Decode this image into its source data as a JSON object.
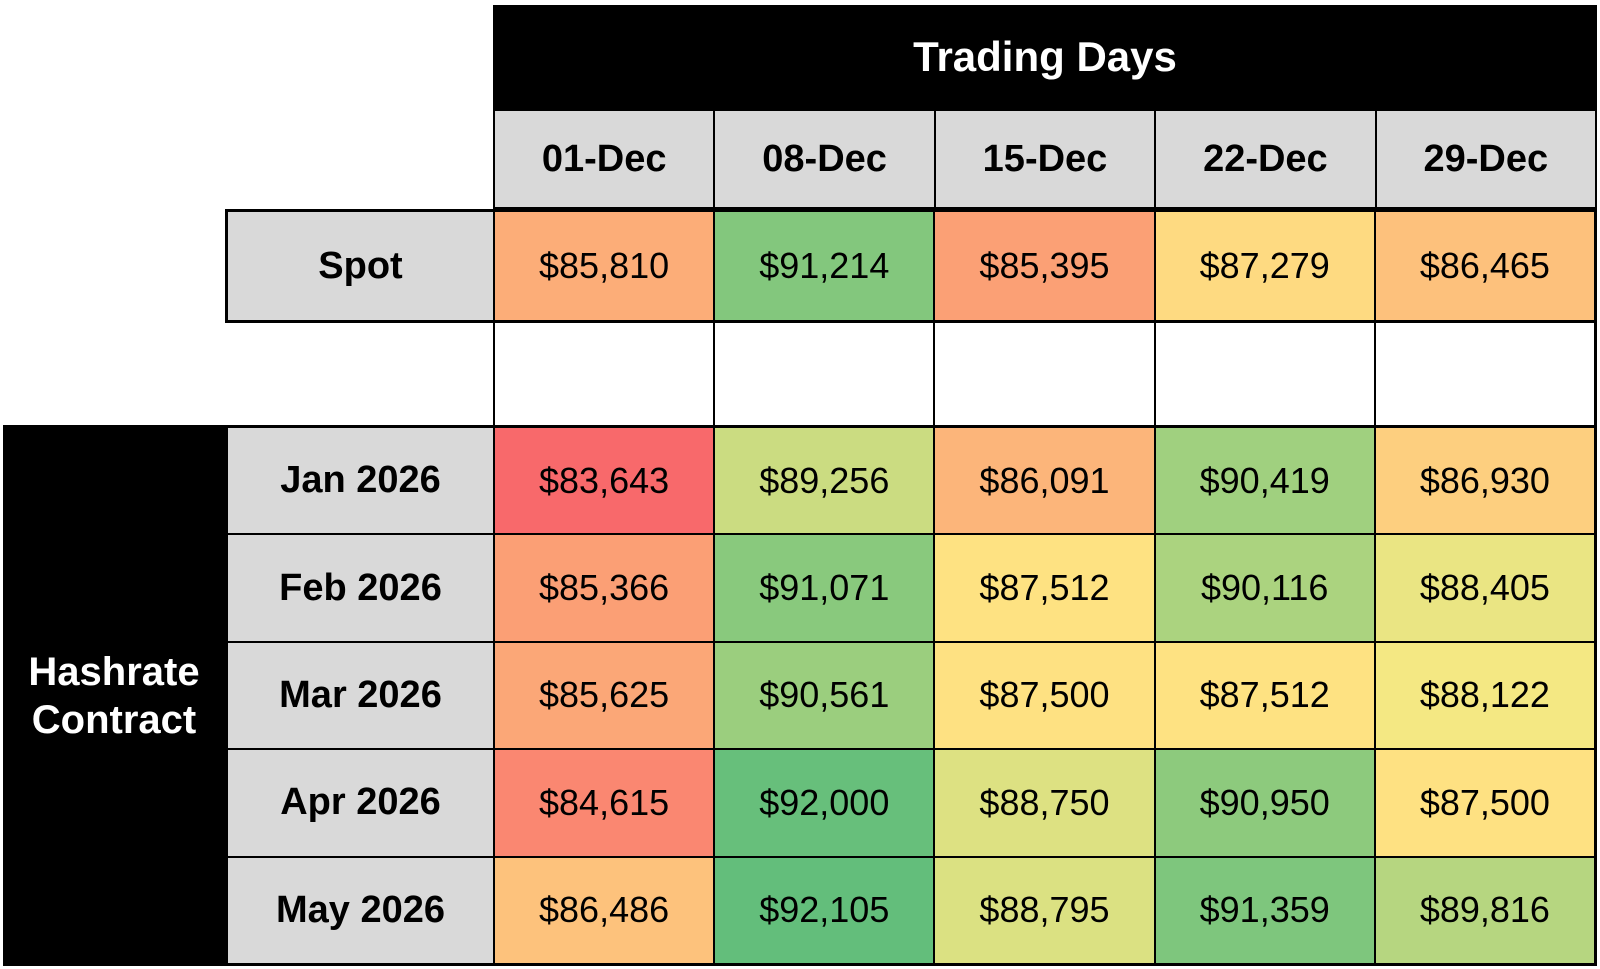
{
  "table": {
    "banner": "Trading Days",
    "group_label": "Hashrate Contract",
    "columns": [
      "01-Dec",
      "08-Dec",
      "15-Dec",
      "22-Dec",
      "29-Dec"
    ],
    "spot": {
      "label": "Spot",
      "cells": [
        {
          "value": "$85,810",
          "bg": "#FCAD78"
        },
        {
          "value": "$91,214",
          "bg": "#83C77D"
        },
        {
          "value": "$85,395",
          "bg": "#FBA075"
        },
        {
          "value": "$87,279",
          "bg": "#FEDA81"
        },
        {
          "value": "$86,465",
          "bg": "#FDC17C"
        }
      ]
    },
    "rows": [
      {
        "label": "Jan 2026",
        "cells": [
          {
            "value": "$83,643",
            "bg": "#F8696B"
          },
          {
            "value": "$89,256",
            "bg": "#CBDC81"
          },
          {
            "value": "$86,091",
            "bg": "#FCB57A"
          },
          {
            "value": "$90,419",
            "bg": "#A0D07F"
          },
          {
            "value": "$86,930",
            "bg": "#FDCF7F"
          }
        ]
      },
      {
        "label": "Feb 2026",
        "cells": [
          {
            "value": "$85,366",
            "bg": "#FB9F75"
          },
          {
            "value": "$91,071",
            "bg": "#89C97D"
          },
          {
            "value": "$87,512",
            "bg": "#FEE282"
          },
          {
            "value": "$90,116",
            "bg": "#ABD37F"
          },
          {
            "value": "$88,405",
            "bg": "#EAE583"
          }
        ]
      },
      {
        "label": "Mar 2026",
        "cells": [
          {
            "value": "$85,625",
            "bg": "#FBA777"
          },
          {
            "value": "$90,561",
            "bg": "#9BCE7E"
          },
          {
            "value": "$87,500",
            "bg": "#FEE182"
          },
          {
            "value": "$87,512",
            "bg": "#FEE282"
          },
          {
            "value": "$88,122",
            "bg": "#F4E883"
          }
        ]
      },
      {
        "label": "Apr 2026",
        "cells": [
          {
            "value": "$84,615",
            "bg": "#FA8771"
          },
          {
            "value": "$92,000",
            "bg": "#67BF7B"
          },
          {
            "value": "$88,750",
            "bg": "#DDE182"
          },
          {
            "value": "$90,950",
            "bg": "#8DCA7D"
          },
          {
            "value": "$87,500",
            "bg": "#FEE182"
          }
        ]
      },
      {
        "label": "May 2026",
        "cells": [
          {
            "value": "$86,486",
            "bg": "#FDC27C"
          },
          {
            "value": "$92,105",
            "bg": "#63BE7B"
          },
          {
            "value": "$88,795",
            "bg": "#DBE182"
          },
          {
            "value": "$91,359",
            "bg": "#7EC67D"
          },
          {
            "value": "$89,816",
            "bg": "#B6D680"
          }
        ]
      }
    ],
    "colors": {
      "header_bg": "#D9D9D9",
      "banner_bg": "#000000",
      "banner_text": "#FFFFFF",
      "grid_line": "#000000"
    }
  },
  "chart_data": {
    "type": "heatmap",
    "title": "Trading Days",
    "x_categories": [
      "01-Dec",
      "08-Dec",
      "15-Dec",
      "22-Dec",
      "29-Dec"
    ],
    "y_categories": [
      "Spot",
      "Jan 2026",
      "Feb 2026",
      "Mar 2026",
      "Apr 2026",
      "May 2026"
    ],
    "y_group_label": "Hashrate Contract (Jan 2026 - May 2026 rows)",
    "values_usd": [
      [
        85810,
        91214,
        85395,
        87279,
        86465
      ],
      [
        83643,
        89256,
        86091,
        90419,
        86930
      ],
      [
        85366,
        91071,
        87512,
        90116,
        88405
      ],
      [
        85625,
        90561,
        87500,
        87512,
        88122
      ],
      [
        84615,
        92000,
        88750,
        90950,
        87500
      ],
      [
        86486,
        92105,
        88795,
        91359,
        89816
      ]
    ],
    "color_scale": {
      "type": "3-color",
      "min_color": "#F8696B",
      "mid_color": "#FFEB84",
      "max_color": "#63BE7B",
      "min_value": 83643,
      "mid_value": 87817,
      "max_value": 92105
    },
    "legend": "none",
    "grid": true
  }
}
